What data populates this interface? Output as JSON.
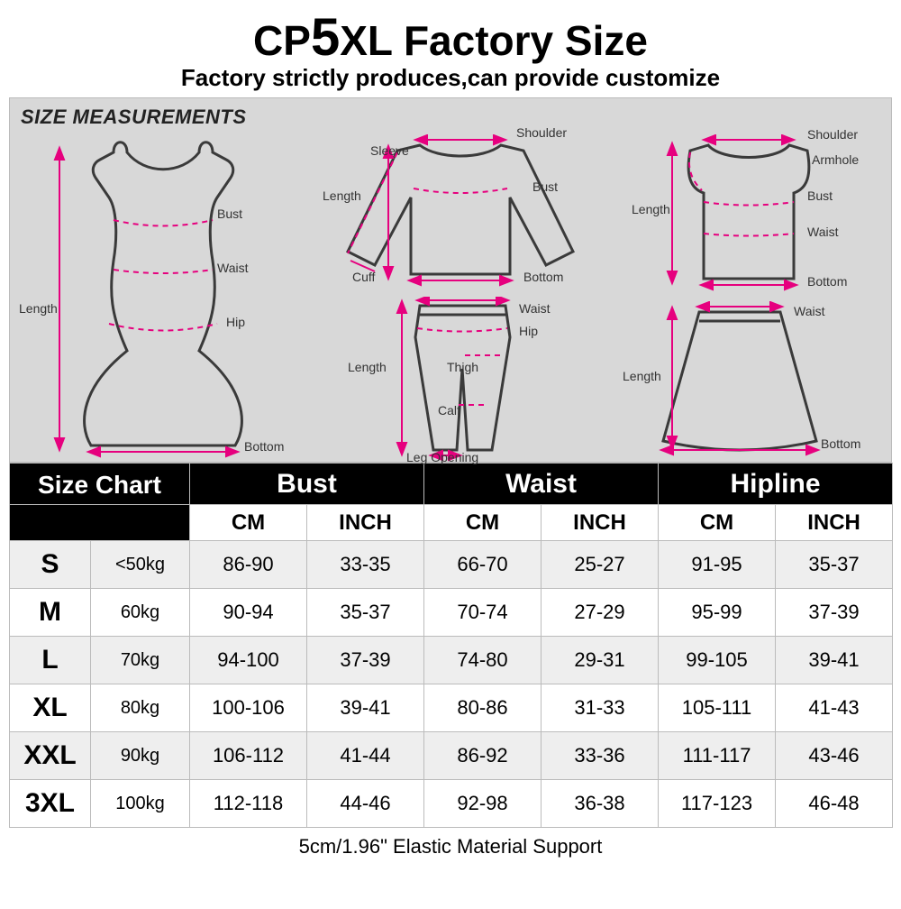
{
  "header": {
    "title_prefix": "CP",
    "title_big": "5",
    "title_suffix": "XL Factory Size",
    "subtitle": "Factory strictly produces,can provide customize",
    "footer": "5cm/1.96\" Elastic Material Support"
  },
  "diagram": {
    "title": "SIZE MEASUREMENTS",
    "labels": {
      "length": "Length",
      "bust": "Bust",
      "waist": "Waist",
      "hip": "Hip",
      "bottom": "Bottom",
      "sleeve": "Sleeve",
      "shoulder": "Shoulder",
      "cuff": "Cuff",
      "thigh": "Thigh",
      "calf": "Calf",
      "leg_opening": "Leg Opening",
      "armhole": "Armhole"
    },
    "arrow_color": "#e6007e",
    "outline_color": "#3a3a3a",
    "bg_color": "#d8d8d8"
  },
  "table": {
    "header": {
      "size_chart": "Size Chart",
      "bust": "Bust",
      "waist": "Waist",
      "hipline": "Hipline",
      "cm": "CM",
      "inch": "INCH"
    },
    "rows": [
      {
        "size": "S",
        "weight": "<50kg",
        "bust_cm": "86-90",
        "bust_in": "33-35",
        "waist_cm": "66-70",
        "waist_in": "25-27",
        "hip_cm": "91-95",
        "hip_in": "35-37"
      },
      {
        "size": "M",
        "weight": "60kg",
        "bust_cm": "90-94",
        "bust_in": "35-37",
        "waist_cm": "70-74",
        "waist_in": "27-29",
        "hip_cm": "95-99",
        "hip_in": "37-39"
      },
      {
        "size": "L",
        "weight": "70kg",
        "bust_cm": "94-100",
        "bust_in": "37-39",
        "waist_cm": "74-80",
        "waist_in": "29-31",
        "hip_cm": "99-105",
        "hip_in": "39-41"
      },
      {
        "size": "XL",
        "weight": "80kg",
        "bust_cm": "100-106",
        "bust_in": "39-41",
        "waist_cm": "80-86",
        "waist_in": "31-33",
        "hip_cm": "105-111",
        "hip_in": "41-43"
      },
      {
        "size": "XXL",
        "weight": "90kg",
        "bust_cm": "106-112",
        "bust_in": "41-44",
        "waist_cm": "86-92",
        "waist_in": "33-36",
        "hip_cm": "111-117",
        "hip_in": "43-46"
      },
      {
        "size": "3XL",
        "weight": "100kg",
        "bust_cm": "112-118",
        "bust_in": "44-46",
        "waist_cm": "92-98",
        "waist_in": "36-38",
        "hip_cm": "117-123",
        "hip_in": "46-48"
      }
    ],
    "header_bg": "#000000",
    "header_fg": "#ffffff",
    "row_alt_bg": "#eeeeee",
    "border_color": "#bbbbbb"
  }
}
